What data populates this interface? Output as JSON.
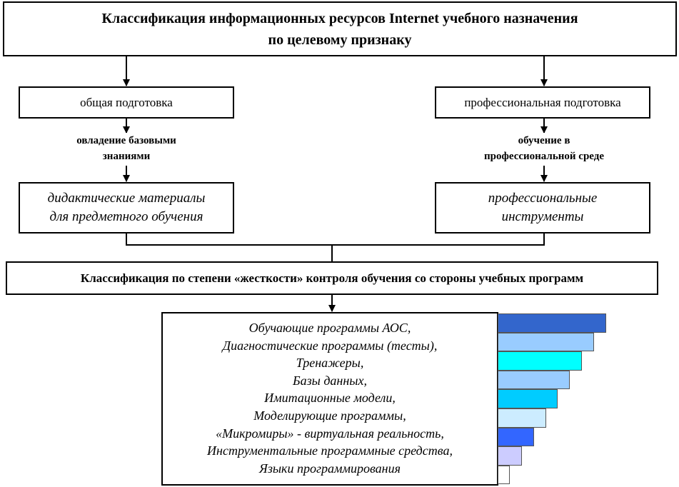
{
  "header": {
    "line1": "Классификация информационных ресурсов Internet учебного назначения",
    "line2": "по целевому признаку"
  },
  "branches": {
    "left": {
      "title": "общая подготовка",
      "edge_line1": "овладение базовыми",
      "edge_line2": "знаниями",
      "result_line1": "дидактические материалы",
      "result_line2": "для предметного обучения"
    },
    "right": {
      "title": "профессиональная подготовка",
      "edge_line1": "обучение в",
      "edge_line2": "профессиональной среде",
      "result_line1": "профессиональные",
      "result_line2": "инструменты"
    }
  },
  "second_classification": {
    "title": "Классификация по степени «жесткости» контроля обучения со стороны учебных программ"
  },
  "program_types": [
    "Обучающие программы АОС,",
    "Диагностические программы (тесты),",
    "Тренажеры,",
    "Базы данных,",
    "Имитационные модели,",
    "Моделирующие программы,",
    "«Микромиры» - виртуальная реальность,",
    "Инструментальные программные средства,",
    "Языки программирования"
  ],
  "rigidity_bars": {
    "levels": [
      9,
      8,
      7,
      6,
      5,
      4,
      3,
      2,
      1
    ],
    "colors": [
      "#3366cc",
      "#99ccff",
      "#00ffff",
      "#99ccff",
      "#00ccff",
      "#ccecff",
      "#3366ff",
      "#ccccff",
      "#ffffff"
    ]
  }
}
